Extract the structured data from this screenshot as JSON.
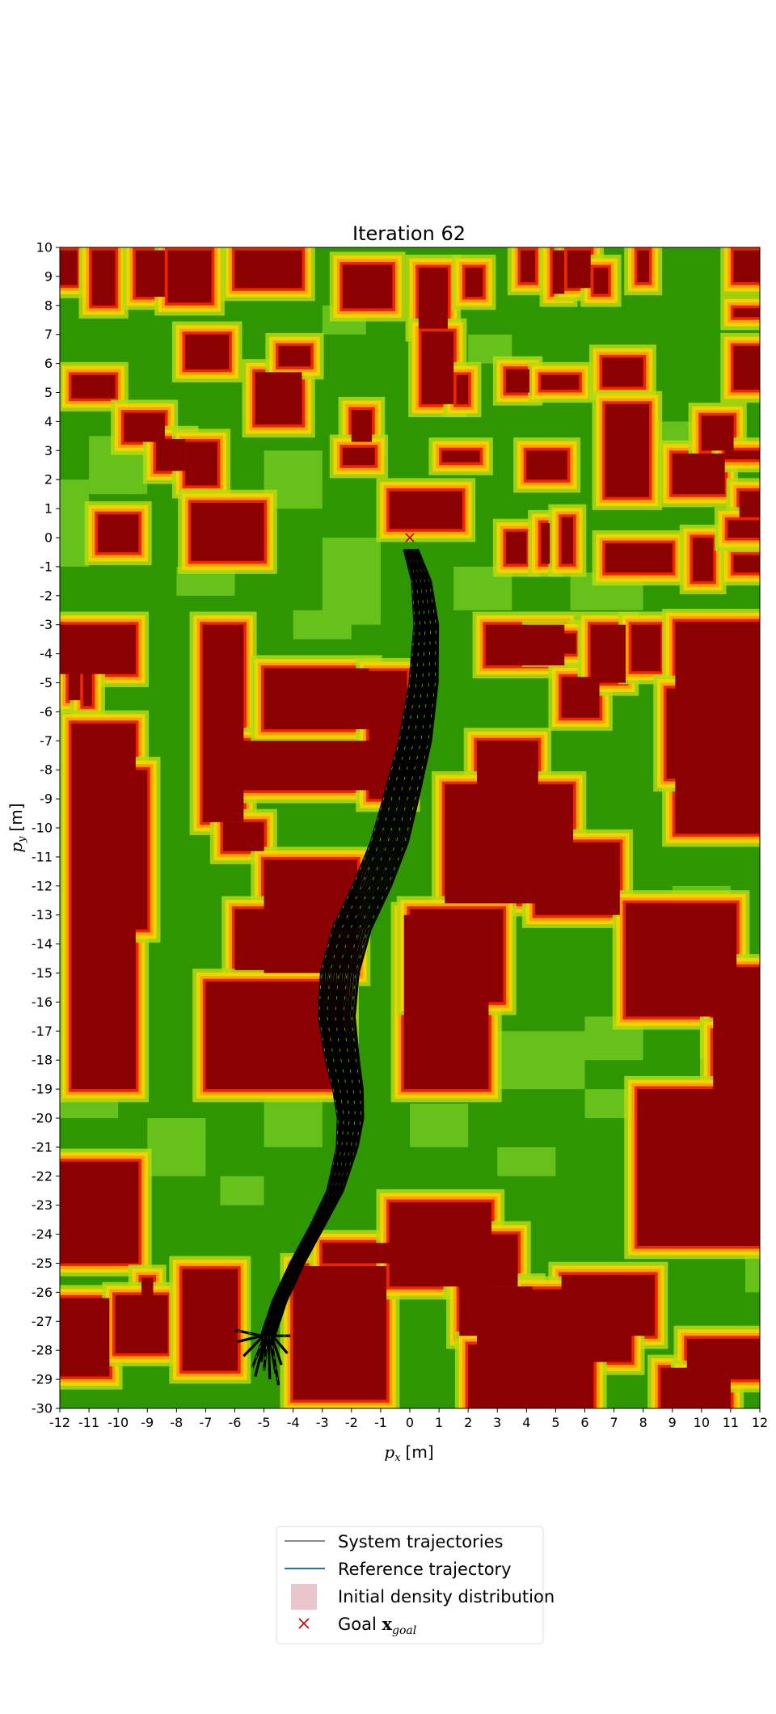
{
  "chart_data": {
    "type": "heatmap",
    "title": "Iteration 62",
    "xlabel": "p_x [m]",
    "xlabel_main": "p",
    "xlabel_sub": "x",
    "xlabel_unit": "[m]",
    "ylabel": "p_y [m]",
    "ylabel_main": "p",
    "ylabel_sub": "y",
    "ylabel_unit": "[m]",
    "xlim": [
      -12,
      12
    ],
    "ylim": [
      -30,
      10
    ],
    "xticks": [
      "-12",
      "-11",
      "-10",
      "-9",
      "-8",
      "-7",
      "-6",
      "-5",
      "-4",
      "-3",
      "-2",
      "-1",
      "0",
      "1",
      "2",
      "3",
      "4",
      "5",
      "6",
      "7",
      "8",
      "9",
      "10",
      "11",
      "12"
    ],
    "yticks": [
      "10",
      "9",
      "8",
      "7",
      "6",
      "5",
      "4",
      "3",
      "2",
      "1",
      "0",
      "-1",
      "-2",
      "-3",
      "-4",
      "-5",
      "-6",
      "-7",
      "-8",
      "-9",
      "-10",
      "-11",
      "-12",
      "-13",
      "-14",
      "-15",
      "-16",
      "-17",
      "-18",
      "-19",
      "-20",
      "-21",
      "-22",
      "-23",
      "-24",
      "-25",
      "-26",
      "-27",
      "-28",
      "-29",
      "-30"
    ],
    "grid": false,
    "colors": {
      "background": "#2e9600",
      "light_green": "#66c21a",
      "yellow_green": "#b4dc10",
      "yellow": "#ffd200",
      "orange": "#ff9a00",
      "red": "#e81000",
      "obstacle": "#8b0000",
      "trajectory": "#000000",
      "reference": "#1f77b4",
      "density": "#e8c6cc",
      "goal": "#c00000"
    },
    "obstacles": [
      [
        -12,
        -11.4,
        8.7,
        9.9
      ],
      [
        -10.9,
        -10.1,
        8.0,
        9.9
      ],
      [
        -9.4,
        -8.4,
        8.3,
        9.9
      ],
      [
        -8.3,
        -6.8,
        8.1,
        9.9
      ],
      [
        -6.0,
        -3.7,
        8.6,
        9.9
      ],
      [
        -2.3,
        -0.6,
        7.9,
        9.4
      ],
      [
        0.3,
        1.3,
        7.2,
        9.3
      ],
      [
        1.9,
        2.5,
        8.3,
        9.3
      ],
      [
        3.8,
        4.3,
        8.8,
        9.9
      ],
      [
        4.9,
        5.3,
        8.4,
        9.9
      ],
      [
        5.4,
        6.2,
        8.6,
        9.9
      ],
      [
        6.3,
        6.8,
        8.4,
        9.3
      ],
      [
        7.8,
        8.2,
        8.8,
        9.9
      ],
      [
        11.1,
        12,
        8.8,
        9.9
      ],
      [
        11.1,
        12,
        7.6,
        7.9
      ],
      [
        -7.7,
        -6.2,
        5.8,
        7.0
      ],
      [
        -5.3,
        -3.7,
        3.9,
        5.7
      ],
      [
        -4.5,
        -3.4,
        5.9,
        6.6
      ],
      [
        -11.6,
        -10.1,
        4.8,
        5.6
      ],
      [
        -9.8,
        -8.4,
        3.3,
        4.3
      ],
      [
        -8.7,
        -7.7,
        2.3,
        3.4
      ],
      [
        -7.7,
        -6.6,
        1.8,
        3.3
      ],
      [
        -2.0,
        -1.3,
        3.3,
        4.4
      ],
      [
        -2.3,
        -1.2,
        2.5,
        3.1
      ],
      [
        0.4,
        1.5,
        4.6,
        7.1
      ],
      [
        1.6,
        2.0,
        4.6,
        5.6
      ],
      [
        1.1,
        2.4,
        2.6,
        3.0
      ],
      [
        3.3,
        4.1,
        5.0,
        5.8
      ],
      [
        4.5,
        5.8,
        5.1,
        5.6
      ],
      [
        4.0,
        5.4,
        2.0,
        3.0
      ],
      [
        6.6,
        8.0,
        5.2,
        6.2
      ],
      [
        6.7,
        8.2,
        1.4,
        4.6
      ],
      [
        9.0,
        10.8,
        1.5,
        2.9
      ],
      [
        10.0,
        11.1,
        3.0,
        4.2
      ],
      [
        11.1,
        12,
        5.1,
        6.6
      ],
      [
        10.8,
        12,
        2.7,
        3.0
      ],
      [
        11.3,
        12,
        0.7,
        1.6
      ],
      [
        -0.7,
        1.8,
        0.3,
        1.6
      ],
      [
        -10.7,
        -9.3,
        -0.5,
        0.8
      ],
      [
        -7.5,
        -5.0,
        -0.8,
        1.2
      ],
      [
        3.3,
        4.0,
        -0.9,
        0.2
      ],
      [
        4.5,
        4.8,
        -0.9,
        0.5
      ],
      [
        5.2,
        5.6,
        -0.9,
        0.7
      ],
      [
        6.7,
        9.0,
        -1.2,
        -0.2
      ],
      [
        9.7,
        10.4,
        -1.5,
        0.0
      ],
      [
        11.1,
        12,
        -1.2,
        -0.6
      ],
      [
        10.9,
        12,
        0.0,
        0.6
      ],
      [
        -12,
        -9.4,
        -4.7,
        -3.0
      ],
      [
        -11.7,
        -11.3,
        -5.6,
        -4.4
      ],
      [
        -11.2,
        -10.9,
        -5.8,
        -4.5
      ],
      [
        -11.6,
        -9.4,
        -19.0,
        -6.4
      ],
      [
        -7.1,
        -5.7,
        -9.8,
        -3.0
      ],
      [
        -5.8,
        -1.4,
        -8.7,
        -7.0
      ],
      [
        -5.0,
        -1.4,
        -6.6,
        -4.5
      ],
      [
        -1.4,
        -0.1,
        -9.0,
        -4.6
      ],
      [
        -9.5,
        -9.0,
        -13.5,
        -8.0
      ],
      [
        -6.4,
        -5.0,
        -10.8,
        -9.8
      ],
      [
        -5.0,
        -1.8,
        -15.0,
        -11.1
      ],
      [
        -6.0,
        -2.2,
        -14.9,
        -12.8
      ],
      [
        -7.0,
        -2.2,
        -19.0,
        -15.3
      ],
      [
        2.3,
        4.4,
        -9.0,
        -7.0
      ],
      [
        1.2,
        5.6,
        -12.6,
        -8.5
      ],
      [
        4.3,
        7.2,
        -13.0,
        -10.5
      ],
      [
        2.6,
        5.3,
        -4.4,
        -3.0
      ],
      [
        4.3,
        5.7,
        -4.0,
        -3.3
      ],
      [
        5.2,
        6.5,
        -6.2,
        -4.8
      ],
      [
        6.2,
        7.4,
        -5.0,
        -3.0
      ],
      [
        7.6,
        8.6,
        -4.6,
        -3.0
      ],
      [
        9.1,
        12,
        -10.2,
        -2.9
      ],
      [
        8.8,
        10.1,
        -8.3,
        -5.2
      ],
      [
        -0.2,
        2.7,
        -19.0,
        -13.0
      ],
      [
        0.0,
        3.2,
        -16.0,
        -12.8
      ],
      [
        7.4,
        11.2,
        -16.5,
        -12.6
      ],
      [
        10.4,
        12,
        -17.5,
        -14.8
      ],
      [
        10.4,
        12,
        -19.1,
        -17.0
      ],
      [
        7.8,
        12,
        -24.4,
        -19.0
      ],
      [
        9.6,
        12,
        -23.8,
        -19.8
      ],
      [
        -12,
        -9.3,
        -25.0,
        -21.5
      ],
      [
        -12,
        -10.5,
        -23.0,
        -22.3
      ],
      [
        -9.2,
        -8.8,
        -28.0,
        -25.5
      ],
      [
        -12,
        -10.3,
        -28.9,
        -26.2
      ],
      [
        -10.1,
        -8.3,
        -28.1,
        -26.1
      ],
      [
        -7.8,
        -5.9,
        -28.7,
        -25.2
      ],
      [
        -4.0,
        -0.8,
        -29.7,
        -25.1
      ],
      [
        -3.0,
        -0.3,
        -25.0,
        -24.3
      ],
      [
        -0.7,
        2.8,
        -25.8,
        -22.9
      ],
      [
        1.6,
        3.7,
        -25.8,
        -24.0
      ],
      [
        1.7,
        4.2,
        -27.5,
        -25.8
      ],
      [
        2.3,
        4.3,
        -28.2,
        -27.3
      ],
      [
        5.2,
        8.4,
        -27.5,
        -25.4
      ],
      [
        4.0,
        7.6,
        -28.4,
        -25.9
      ],
      [
        2.0,
        6.3,
        -30.0,
        -27.8
      ],
      [
        8.6,
        11.0,
        -30.0,
        -28.6
      ],
      [
        9.5,
        12,
        -29.0,
        -27.6
      ],
      [
        9.4,
        10.0,
        -29.2,
        -28.8
      ]
    ],
    "light_patches": [
      [
        -12,
        -11,
        -1.0,
        2.0
      ],
      [
        -11,
        -9,
        1.5,
        3.5
      ],
      [
        -5,
        -3,
        1,
        3
      ],
      [
        -3,
        -1,
        -3,
        0
      ],
      [
        1.5,
        3.5,
        -2.5,
        -1
      ],
      [
        5.5,
        8,
        -2.5,
        -1.2
      ],
      [
        -9,
        -7,
        -22,
        -20
      ],
      [
        -5,
        -3,
        -21,
        -19
      ],
      [
        0,
        2,
        -21,
        -19.5
      ],
      [
        3,
        6,
        -19,
        -17
      ],
      [
        6,
        8,
        -18,
        -16.5
      ],
      [
        -8,
        -6,
        -2,
        -1
      ],
      [
        -12,
        -10,
        -20,
        -19.3
      ],
      [
        -4,
        -2,
        -3.5,
        -2.5
      ],
      [
        3,
        5,
        -22,
        -21
      ],
      [
        6,
        9,
        -20,
        -19
      ],
      [
        -6.5,
        -5,
        -23,
        -22
      ],
      [
        9,
        11,
        -13,
        -12
      ],
      [
        -3,
        -1.5,
        7,
        8
      ],
      [
        2,
        3.5,
        6,
        7
      ],
      [
        8.5,
        10,
        3,
        4
      ],
      [
        11.5,
        12,
        -26,
        -24
      ]
    ],
    "trajectory_centerline": [
      [
        0,
        -0.4
      ],
      [
        0.35,
        -1.5
      ],
      [
        0.5,
        -3
      ],
      [
        0.4,
        -5
      ],
      [
        0.1,
        -7
      ],
      [
        -0.4,
        -9
      ],
      [
        -0.8,
        -10.5
      ],
      [
        -1.4,
        -12
      ],
      [
        -2.1,
        -13.5
      ],
      [
        -2.5,
        -15
      ],
      [
        -2.6,
        -16.5
      ],
      [
        -2.4,
        -18
      ],
      [
        -2.2,
        -19
      ],
      [
        -2.1,
        -20
      ],
      [
        -2.2,
        -21
      ],
      [
        -2.6,
        -22.5
      ],
      [
        -3.2,
        -23.7
      ],
      [
        -3.9,
        -25
      ],
      [
        -4.5,
        -26.3
      ],
      [
        -4.9,
        -27.5
      ],
      [
        -5.2,
        -28.5
      ]
    ],
    "trajectories": [
      {
        "offset": -0.55,
        "end_x": -6.0,
        "end_y": -27.3
      },
      {
        "offset": -0.45,
        "end_x": -5.9,
        "end_y": -27.7
      },
      {
        "offset": -0.35,
        "end_x": -5.7,
        "end_y": -28.2
      },
      {
        "offset": -0.25,
        "end_x": -5.4,
        "end_y": -28.6
      },
      {
        "offset": -0.15,
        "end_x": -5.3,
        "end_y": -28.9
      },
      {
        "offset": -0.05,
        "end_x": -5.1,
        "end_y": -28.4
      },
      {
        "offset": 0.05,
        "end_x": -5.0,
        "end_y": -28.7
      },
      {
        "offset": 0.15,
        "end_x": -4.8,
        "end_y": -29.0
      },
      {
        "offset": 0.25,
        "end_x": -4.6,
        "end_y": -28.8
      },
      {
        "offset": 0.35,
        "end_x": -4.5,
        "end_y": -29.2
      },
      {
        "offset": 0.45,
        "end_x": -4.4,
        "end_y": -28.5
      },
      {
        "offset": 0.55,
        "end_x": -4.2,
        "end_y": -28.1
      },
      {
        "offset": 0.65,
        "end_x": -4.1,
        "end_y": -27.5
      },
      {
        "offset": 0.75,
        "end_x": -4.5,
        "end_y": -27.0
      }
    ],
    "goal": {
      "x": 0,
      "y": 0
    },
    "legend": {
      "placement": "bottom-center",
      "entries": [
        {
          "label": "System trajectories",
          "kind": "line",
          "color": "#666666"
        },
        {
          "label": "Reference trajectory",
          "kind": "line",
          "color": "#1f77b4"
        },
        {
          "label": "Initial density distribution",
          "kind": "patch",
          "color": "#e8c6cc"
        },
        {
          "label": "Goal ",
          "label_math": "x",
          "label_sub": "goal",
          "kind": "cross",
          "color": "#c00000"
        }
      ]
    }
  }
}
